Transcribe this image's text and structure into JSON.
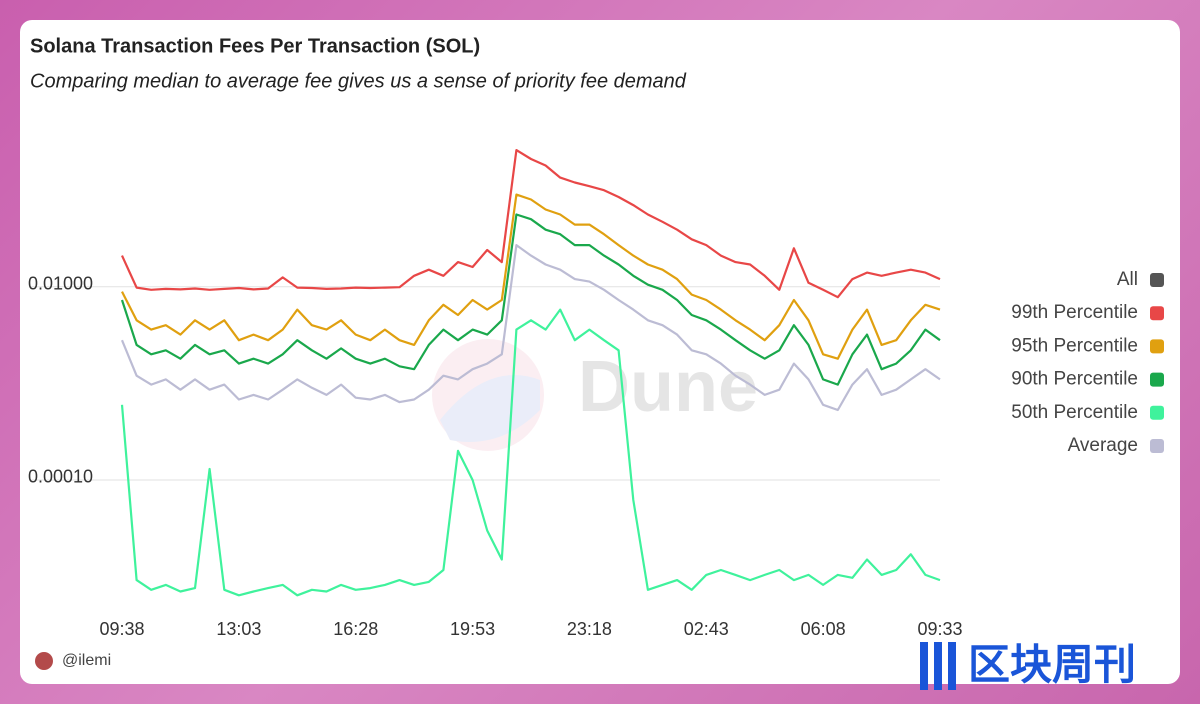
{
  "chart_data": {
    "type": "line",
    "title": "Solana Transaction Fees Per Transaction (SOL)",
    "subtitle": "Comparing median to average fee gives us a sense of priority fee demand",
    "categories": [
      "09:38",
      null,
      null,
      null,
      null,
      null,
      null,
      null,
      "13:03",
      null,
      null,
      null,
      null,
      null,
      null,
      null,
      "16:28",
      null,
      null,
      null,
      null,
      null,
      null,
      null,
      "19:53",
      null,
      null,
      null,
      null,
      null,
      null,
      null,
      "23:18",
      null,
      null,
      null,
      null,
      null,
      null,
      null,
      "02:43",
      null,
      null,
      null,
      null,
      null,
      null,
      null,
      "06:08",
      null,
      null,
      null,
      null,
      null,
      null,
      null,
      "09:33"
    ],
    "log_scale": true,
    "grid": true,
    "ylim": [
      4e-06,
      0.4
    ],
    "yticks": [
      {
        "value": 0.0001,
        "label": "0.00010"
      },
      {
        "value": 0.01,
        "label": "0.01000"
      }
    ],
    "legend_position": "right",
    "legend_all": {
      "name": "All",
      "color": "#555555"
    },
    "series": [
      {
        "name": "99th Percentile",
        "color": "#e84747",
        "values": [
          0.021,
          0.0098,
          0.0093,
          0.0095,
          0.0094,
          0.0096,
          0.0093,
          0.0095,
          0.0097,
          0.0094,
          0.0096,
          0.0125,
          0.0098,
          0.0097,
          0.0095,
          0.0096,
          0.0098,
          0.0097,
          0.0098,
          0.0099,
          0.013,
          0.015,
          0.013,
          0.018,
          0.016,
          0.024,
          0.018,
          0.26,
          0.21,
          0.18,
          0.135,
          0.12,
          0.11,
          0.1,
          0.085,
          0.07,
          0.056,
          0.047,
          0.039,
          0.031,
          0.027,
          0.021,
          0.018,
          0.017,
          0.013,
          0.0093,
          0.025,
          0.011,
          0.0093,
          0.0078,
          0.012,
          0.014,
          0.013,
          0.014,
          0.015,
          0.014,
          0.012
        ]
      },
      {
        "name": "95th Percentile",
        "color": "#e0a010",
        "values": [
          0.0089,
          0.0045,
          0.0036,
          0.004,
          0.0032,
          0.0045,
          0.0036,
          0.0045,
          0.0028,
          0.0032,
          0.0028,
          0.0036,
          0.0058,
          0.004,
          0.0036,
          0.0045,
          0.0032,
          0.0028,
          0.0036,
          0.0028,
          0.0025,
          0.0045,
          0.0065,
          0.0051,
          0.0073,
          0.0058,
          0.0073,
          0.09,
          0.08,
          0.063,
          0.056,
          0.044,
          0.044,
          0.035,
          0.027,
          0.021,
          0.017,
          0.015,
          0.012,
          0.0083,
          0.0073,
          0.0058,
          0.0045,
          0.0036,
          0.0028,
          0.004,
          0.0073,
          0.0045,
          0.002,
          0.0018,
          0.0036,
          0.0058,
          0.0025,
          0.0028,
          0.0045,
          0.0065,
          0.0058
        ]
      },
      {
        "name": "90th Percentile",
        "color": "#1aa84c",
        "values": [
          0.0073,
          0.0025,
          0.002,
          0.0022,
          0.0018,
          0.0025,
          0.002,
          0.0022,
          0.0016,
          0.0018,
          0.0016,
          0.002,
          0.0028,
          0.0022,
          0.0018,
          0.0023,
          0.0018,
          0.0016,
          0.0018,
          0.0015,
          0.0014,
          0.0025,
          0.0036,
          0.0028,
          0.0036,
          0.0032,
          0.0045,
          0.056,
          0.05,
          0.039,
          0.035,
          0.027,
          0.027,
          0.021,
          0.017,
          0.013,
          0.0105,
          0.0093,
          0.0073,
          0.0051,
          0.0045,
          0.0036,
          0.0028,
          0.0022,
          0.0018,
          0.0022,
          0.004,
          0.0025,
          0.0011,
          0.00097,
          0.002,
          0.0032,
          0.0014,
          0.0016,
          0.0022,
          0.0036,
          0.0028
        ]
      },
      {
        "name": "50th Percentile",
        "color": "#3ff29c",
        "values": [
          0.0006,
          9.2e-06,
          7.3e-06,
          8.2e-06,
          7e-06,
          7.6e-06,
          0.00013,
          7.3e-06,
          6.4e-06,
          7e-06,
          7.6e-06,
          8.2e-06,
          6.4e-06,
          7.3e-06,
          7e-06,
          8.2e-06,
          7.3e-06,
          7.6e-06,
          8.2e-06,
          9.2e-06,
          8.2e-06,
          8.8e-06,
          1.17e-05,
          0.0002,
          0.0001,
          3e-05,
          1.5e-05,
          0.0036,
          0.0045,
          0.0036,
          0.0058,
          0.0028,
          0.0036,
          0.0028,
          0.0022,
          6.2e-05,
          7.3e-06,
          8.2e-06,
          9.2e-06,
          7.3e-06,
          1.04e-05,
          1.17e-05,
          1.04e-05,
          9.2e-06,
          1.04e-05,
          1.17e-05,
          9.2e-06,
          1.04e-05,
          8.2e-06,
          1.04e-05,
          9.7e-06,
          1.5e-05,
          1.04e-05,
          1.17e-05,
          1.7e-05,
          1.04e-05,
          9.2e-06
        ]
      },
      {
        "name": "Average",
        "color": "#bcbcd4",
        "values": [
          0.0028,
          0.0012,
          0.00097,
          0.0011,
          0.00086,
          0.0011,
          0.00086,
          0.00097,
          0.00068,
          0.00076,
          0.00068,
          0.00086,
          0.0011,
          0.0009,
          0.00076,
          0.00097,
          0.00071,
          0.00068,
          0.00076,
          0.00064,
          0.00068,
          0.00086,
          0.0012,
          0.0011,
          0.0014,
          0.0016,
          0.002,
          0.027,
          0.021,
          0.017,
          0.015,
          0.012,
          0.0113,
          0.0093,
          0.0073,
          0.0058,
          0.0045,
          0.004,
          0.0032,
          0.0022,
          0.002,
          0.0016,
          0.0012,
          0.00097,
          0.00076,
          0.00086,
          0.0016,
          0.0011,
          0.0006,
          0.00053,
          0.00097,
          0.0014,
          0.00076,
          0.00086,
          0.0011,
          0.0014,
          0.0011
        ]
      }
    ]
  },
  "footer": {
    "author": "@ilemi"
  },
  "watermark": "Dune",
  "overlay_logo": "区块周刊"
}
